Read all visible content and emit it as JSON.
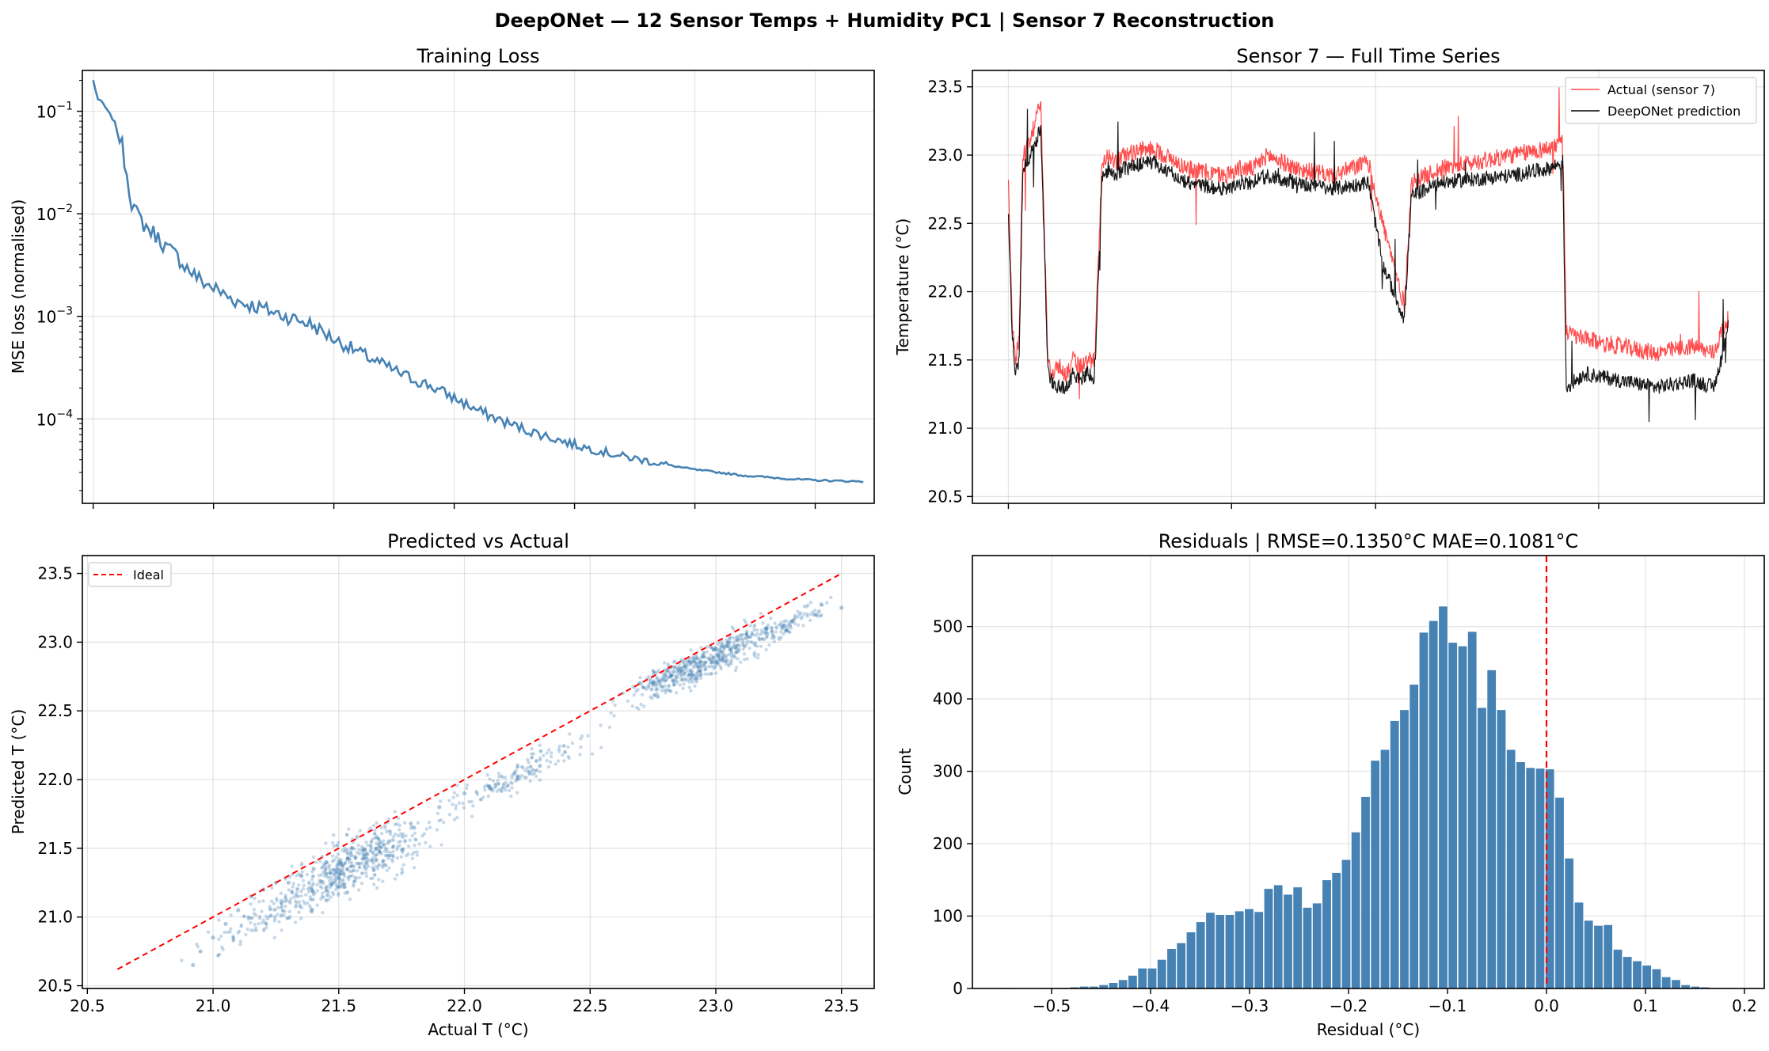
{
  "figure": {
    "suptitle": "DeepONet — 12 Sensor Temps + Humidity PC1  |  Sensor 7 Reconstruction"
  },
  "chart_data": [
    {
      "id": "loss",
      "type": "line",
      "title": "Training Loss",
      "xlabel": "",
      "ylabel": "MSE loss (normalised)",
      "yscale": "log",
      "ylim": [
        1.5e-05,
        0.25
      ],
      "xlim": [
        -4.5,
        324.5
      ],
      "grid": true,
      "ytick_labels": [
        {
          "base": "10",
          "exp": "−1",
          "value": 0.1
        },
        {
          "base": "10",
          "exp": "−2",
          "value": 0.01
        },
        {
          "base": "10",
          "exp": "−3",
          "value": 0.001
        },
        {
          "base": "10",
          "exp": "−4",
          "value": 0.0001
        }
      ],
      "series": [
        {
          "name": "loss",
          "color": "#4682b4",
          "x": [
            0,
            2,
            4,
            6,
            8,
            10,
            12,
            14,
            16,
            18,
            20,
            22,
            24,
            26,
            28,
            30,
            35,
            40,
            45,
            50,
            55,
            60,
            70,
            80,
            90,
            100,
            110,
            120,
            130,
            140,
            150,
            160,
            170,
            180,
            190,
            200,
            210,
            220,
            230,
            240,
            250,
            260,
            270,
            280,
            290,
            300,
            310,
            320
          ],
          "values": [
            0.2,
            0.13,
            0.12,
            0.1,
            0.085,
            0.07,
            0.045,
            0.025,
            0.013,
            0.01,
            0.0085,
            0.0075,
            0.0068,
            0.0062,
            0.0055,
            0.0048,
            0.0038,
            0.0028,
            0.0022,
            0.0019,
            0.0016,
            0.0014,
            0.0012,
            0.001,
            0.00085,
            0.0006,
            0.00045,
            0.00034,
            0.00026,
            0.00021,
            0.00016,
            0.00012,
            9.5e-05,
            7.8e-05,
            6.6e-05,
            5.6e-05,
            4.9e-05,
            4.3e-05,
            3.9e-05,
            3.5e-05,
            3.2e-05,
            3e-05,
            2.8e-05,
            2.7e-05,
            2.59e-05,
            2.52e-05,
            2.48e-05,
            2.45e-05
          ]
        }
      ]
    },
    {
      "id": "timeseries",
      "type": "line",
      "title": "Sensor 7 — Full Time Series",
      "xlabel": "",
      "ylabel": "Temperature (°C)",
      "ylim": [
        20.45,
        23.62
      ],
      "xlim": [
        0,
        1
      ],
      "yticks": [
        20.5,
        21.0,
        21.5,
        22.0,
        22.5,
        23.0,
        23.5
      ],
      "ytick_labels": [
        "20.5",
        "21.0",
        "21.5",
        "22.0",
        "22.5",
        "23.0",
        "23.5"
      ],
      "grid": true,
      "legend": "top-right",
      "series": [
        {
          "name": "Actual (sensor 7)",
          "color": "#ff0000",
          "x": [
            0,
            0.005,
            0.01,
            0.015,
            0.02,
            0.025,
            0.03,
            0.035,
            0.045,
            0.05,
            0.055,
            0.06,
            0.07,
            0.08,
            0.09,
            0.1,
            0.11,
            0.12,
            0.13,
            0.14,
            0.15,
            0.16,
            0.2,
            0.25,
            0.3,
            0.32,
            0.34,
            0.36,
            0.4,
            0.45,
            0.5,
            0.52,
            0.55,
            0.56,
            0.58,
            0.6,
            0.7,
            0.75,
            0.77,
            0.775,
            0.8,
            0.85,
            0.9,
            0.95,
            0.98,
            0.99,
            1.0
          ],
          "values": [
            22.8,
            21.8,
            21.5,
            21.7,
            23.0,
            23.05,
            23.1,
            23.2,
            23.4,
            22.4,
            21.5,
            21.4,
            21.45,
            21.4,
            21.5,
            21.45,
            21.5,
            21.5,
            22.95,
            23.0,
            22.95,
            23.0,
            23.05,
            22.9,
            22.85,
            22.9,
            22.9,
            23.0,
            22.9,
            22.85,
            22.95,
            22.5,
            21.9,
            22.8,
            22.85,
            22.9,
            23.0,
            23.05,
            23.1,
            21.7,
            21.65,
            21.6,
            21.55,
            21.6,
            21.55,
            21.7,
            21.8
          ]
        },
        {
          "name": "DeepONet prediction",
          "color": "#000000",
          "x": [
            0,
            0.005,
            0.01,
            0.015,
            0.02,
            0.025,
            0.03,
            0.035,
            0.045,
            0.05,
            0.055,
            0.06,
            0.07,
            0.08,
            0.09,
            0.1,
            0.11,
            0.12,
            0.13,
            0.14,
            0.15,
            0.16,
            0.2,
            0.25,
            0.3,
            0.32,
            0.34,
            0.36,
            0.4,
            0.45,
            0.5,
            0.52,
            0.55,
            0.56,
            0.58,
            0.6,
            0.7,
            0.75,
            0.77,
            0.775,
            0.8,
            0.85,
            0.9,
            0.95,
            0.98,
            0.99,
            1.0
          ],
          "values": [
            22.6,
            21.7,
            21.4,
            21.5,
            22.9,
            22.95,
            23.0,
            23.05,
            23.2,
            22.3,
            21.4,
            21.35,
            21.3,
            21.3,
            21.4,
            21.35,
            21.4,
            21.35,
            22.85,
            22.9,
            22.85,
            22.9,
            22.95,
            22.8,
            22.75,
            22.8,
            22.8,
            22.85,
            22.8,
            22.75,
            22.8,
            22.2,
            21.8,
            22.7,
            22.75,
            22.8,
            22.85,
            22.9,
            22.95,
            21.3,
            21.4,
            21.35,
            21.3,
            21.35,
            21.3,
            21.5,
            21.75
          ]
        }
      ]
    },
    {
      "id": "scatter",
      "type": "scatter",
      "title": "Predicted vs Actual",
      "xlabel": "Actual T (°C)",
      "ylabel": "Predicted T (°C)",
      "xlim": [
        20.48,
        23.63
      ],
      "ylim": [
        20.48,
        23.63
      ],
      "xticks": [
        20.5,
        21.0,
        21.5,
        22.0,
        22.5,
        23.0,
        23.5
      ],
      "xtick_labels": [
        "20.5",
        "21.0",
        "21.5",
        "22.0",
        "22.5",
        "23.0",
        "23.5"
      ],
      "yticks": [
        20.5,
        21.0,
        21.5,
        22.0,
        22.5,
        23.0,
        23.5
      ],
      "ytick_labels": [
        "20.5",
        "21.0",
        "21.5",
        "22.0",
        "22.5",
        "23.0",
        "23.5"
      ],
      "grid": true,
      "legend": "top-left",
      "ideal": {
        "name": "Ideal",
        "color": "#ff0000",
        "x": [
          20.62,
          23.49
        ],
        "values": [
          20.62,
          23.49
        ]
      },
      "series": [
        {
          "name": "points",
          "color": "#4682b4",
          "x": [
            20.92,
            20.95,
            21.0,
            21.05,
            21.1,
            21.15,
            21.2,
            21.25,
            21.3,
            21.35,
            21.4,
            21.45,
            21.5,
            21.55,
            21.6,
            21.65,
            21.7,
            21.8,
            21.9,
            22.0,
            22.1,
            22.2,
            22.3,
            22.4,
            22.7,
            22.75,
            22.8,
            22.85,
            22.9,
            22.95,
            23.0,
            23.05,
            23.1,
            23.2,
            23.3,
            23.4,
            23.5
          ],
          "values": [
            20.65,
            20.75,
            20.85,
            20.95,
            21.05,
            21.15,
            21.2,
            21.25,
            21.25,
            21.3,
            21.35,
            21.4,
            21.4,
            21.45,
            21.45,
            21.5,
            21.55,
            21.65,
            21.8,
            21.9,
            21.95,
            22.05,
            22.1,
            22.2,
            22.7,
            22.7,
            22.75,
            22.8,
            22.85,
            22.9,
            22.95,
            23.0,
            23.05,
            23.1,
            23.15,
            23.2,
            23.25
          ]
        }
      ]
    },
    {
      "id": "residuals",
      "type": "bar",
      "title": "Residuals  |  RMSE=0.1350°C  MAE=0.1081°C",
      "xlabel": "Residual (°C)",
      "ylabel": "Count",
      "xlim": [
        -0.58,
        0.22
      ],
      "ylim": [
        0,
        598
      ],
      "xticks": [
        -0.5,
        -0.4,
        -0.3,
        -0.2,
        -0.1,
        0.0,
        0.1,
        0.2
      ],
      "xtick_labels": [
        "−0.5",
        "−0.4",
        "−0.3",
        "−0.2",
        "−0.1",
        "0.0",
        "0.1",
        "0.2"
      ],
      "yticks": [
        0,
        100,
        200,
        300,
        400,
        500
      ],
      "ytick_labels": [
        "0",
        "100",
        "200",
        "300",
        "400",
        "500"
      ],
      "grid": true,
      "zero_line": {
        "x": 0.0,
        "color": "#ff0000"
      },
      "bin_start": -0.55,
      "bin_width": 0.0098,
      "values": [
        1,
        0,
        0,
        0,
        1,
        1,
        1,
        2,
        3,
        3,
        5,
        8,
        12,
        18,
        28,
        28,
        40,
        55,
        63,
        78,
        92,
        105,
        102,
        102,
        107,
        110,
        106,
        138,
        143,
        130,
        140,
        112,
        118,
        150,
        160,
        178,
        216,
        265,
        315,
        330,
        370,
        385,
        420,
        492,
        508,
        528,
        478,
        473,
        493,
        388,
        440,
        385,
        330,
        313,
        305,
        304,
        303,
        264,
        180,
        119,
        94,
        87,
        88,
        54,
        44,
        38,
        32,
        27,
        16,
        12,
        5,
        3,
        2,
        1,
        1,
        1,
        0,
        1
      ],
      "bar_color": "#4682b4"
    }
  ]
}
